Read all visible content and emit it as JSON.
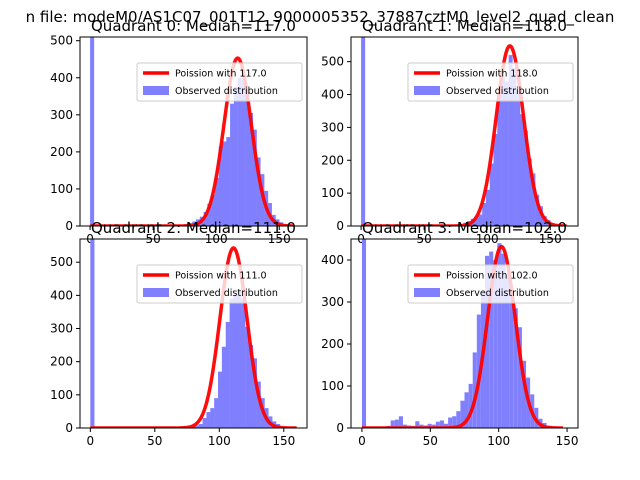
{
  "figure": {
    "suptitle": "n file: modeM0/AS1C07_001T12_9000005352_37887cztM0_level2_quad_clean"
  },
  "colors": {
    "observed": "#8080ff",
    "poisson": "#ff0000",
    "axes": "#000000"
  },
  "chart_data": [
    {
      "type": "bar",
      "title": "Quadrant 0: Median=117.0",
      "xlim": [
        -8,
        172
      ],
      "ylim": [
        0,
        510
      ],
      "xticks": [
        0,
        50,
        100,
        150
      ],
      "yticks": [
        0,
        100,
        200,
        300,
        400,
        500
      ],
      "bin_width": 3.2,
      "legend": {
        "poisson_label": "Poission with 117.0",
        "observed_label": "Observed distribution",
        "placement": "top-right"
      },
      "poisson": {
        "mean": 117,
        "peak": 453,
        "x_range": [
          0,
          162
        ]
      },
      "observed_x": [
        0,
        3,
        6,
        9,
        12,
        15,
        18,
        21,
        24,
        27,
        30,
        33,
        36,
        39,
        42,
        45,
        48,
        51,
        54,
        57,
        60,
        63,
        66,
        69,
        72,
        75,
        78,
        81,
        84,
        87,
        90,
        93,
        96,
        99,
        102,
        105,
        108,
        111,
        114,
        117,
        120,
        123,
        126,
        129,
        132,
        135,
        138,
        141,
        144,
        147,
        150,
        153,
        156,
        159,
        162
      ],
      "observed_y": [
        510,
        0,
        0,
        0,
        0,
        0,
        0,
        0,
        0,
        0,
        0,
        0,
        0,
        0,
        0,
        0,
        0,
        0,
        0,
        0,
        0,
        0,
        0,
        2,
        3,
        5,
        8,
        12,
        18,
        25,
        38,
        60,
        85,
        130,
        215,
        228,
        240,
        330,
        375,
        400,
        395,
        370,
        305,
        260,
        185,
        140,
        95,
        62,
        30,
        18,
        10,
        5,
        3,
        2,
        1
      ]
    },
    {
      "type": "bar",
      "title": "Quadrant 1: Median=118.0",
      "xlim": [
        -8,
        172
      ],
      "ylim": [
        0,
        575
      ],
      "xticks": [
        0,
        50,
        100,
        150
      ],
      "yticks": [
        0,
        100,
        200,
        300,
        400,
        500
      ],
      "bin_width": 3.2,
      "legend": {
        "poisson_label": "Poission with 118.0",
        "observed_label": "Observed distribution",
        "placement": "top-right"
      },
      "poisson": {
        "mean": 118,
        "peak": 548,
        "x_range": [
          0,
          163
        ]
      },
      "observed_x": [
        0,
        3,
        6,
        9,
        12,
        15,
        18,
        21,
        24,
        27,
        30,
        33,
        36,
        39,
        42,
        45,
        48,
        51,
        54,
        57,
        60,
        63,
        66,
        69,
        72,
        75,
        78,
        81,
        84,
        87,
        90,
        93,
        96,
        99,
        102,
        105,
        108,
        111,
        114,
        117,
        120,
        123,
        126,
        129,
        132,
        135,
        138,
        141,
        144,
        147,
        150,
        153,
        156,
        159,
        162
      ],
      "observed_y": [
        575,
        0,
        0,
        0,
        0,
        0,
        0,
        0,
        0,
        0,
        0,
        0,
        0,
        0,
        0,
        0,
        0,
        0,
        0,
        0,
        0,
        0,
        0,
        1,
        2,
        4,
        6,
        10,
        15,
        22,
        25,
        35,
        70,
        110,
        190,
        280,
        400,
        455,
        440,
        520,
        480,
        410,
        340,
        290,
        205,
        160,
        95,
        60,
        30,
        18,
        9,
        5,
        3,
        2,
        1
      ]
    },
    {
      "type": "bar",
      "title": "Quadrant 2: Median=111.0",
      "xlim": [
        -8,
        168
      ],
      "ylim": [
        0,
        570
      ],
      "xticks": [
        0,
        50,
        100,
        150
      ],
      "yticks": [
        0,
        100,
        200,
        300,
        400,
        500
      ],
      "bin_width": 3.2,
      "legend": {
        "poisson_label": "Poission with 111.0",
        "observed_label": "Observed distribution",
        "placement": "top-right"
      },
      "poisson": {
        "mean": 111,
        "peak": 543,
        "x_range": [
          0,
          160
        ]
      },
      "observed_x": [
        0,
        3,
        6,
        9,
        12,
        15,
        18,
        21,
        24,
        27,
        30,
        33,
        36,
        39,
        42,
        45,
        48,
        51,
        54,
        57,
        60,
        63,
        66,
        69,
        72,
        75,
        78,
        81,
        84,
        87,
        90,
        93,
        96,
        99,
        102,
        105,
        108,
        111,
        114,
        117,
        120,
        123,
        126,
        129,
        132,
        135,
        138,
        141,
        144,
        147,
        150,
        153,
        156,
        159
      ],
      "observed_y": [
        570,
        0,
        0,
        0,
        0,
        0,
        0,
        0,
        0,
        0,
        0,
        0,
        0,
        0,
        0,
        0,
        0,
        0,
        0,
        0,
        0,
        0,
        0,
        1,
        2,
        3,
        5,
        8,
        12,
        30,
        48,
        60,
        90,
        170,
        245,
        320,
        390,
        400,
        415,
        390,
        305,
        250,
        210,
        140,
        90,
        60,
        35,
        20,
        12,
        6,
        3,
        2,
        1,
        1
      ]
    },
    {
      "type": "bar",
      "title": "Quadrant 3: Median=102.0",
      "xlim": [
        -8,
        158
      ],
      "ylim": [
        0,
        450
      ],
      "xticks": [
        0,
        50,
        100,
        150
      ],
      "yticks": [
        0,
        100,
        200,
        300,
        400
      ],
      "bin_width": 3.0,
      "legend": {
        "poisson_label": "Poission with 102.0",
        "observed_label": "Observed distribution",
        "placement": "top-right"
      },
      "poisson": {
        "mean": 102,
        "peak": 432,
        "x_range": [
          0,
          147
        ]
      },
      "observed_x": [
        0,
        3,
        6,
        9,
        12,
        15,
        18,
        21,
        24,
        27,
        30,
        33,
        36,
        39,
        42,
        45,
        48,
        51,
        54,
        57,
        60,
        63,
        66,
        69,
        72,
        75,
        78,
        81,
        84,
        87,
        90,
        93,
        96,
        99,
        102,
        105,
        108,
        111,
        114,
        117,
        120,
        123,
        126,
        129,
        132,
        135,
        138,
        141,
        144
      ],
      "observed_y": [
        450,
        0,
        0,
        0,
        0,
        0,
        5,
        18,
        20,
        28,
        8,
        6,
        5,
        16,
        8,
        6,
        10,
        8,
        15,
        18,
        10,
        25,
        28,
        40,
        65,
        85,
        105,
        180,
        270,
        320,
        410,
        420,
        400,
        440,
        415,
        360,
        320,
        285,
        240,
        160,
        120,
        80,
        48,
        22,
        12,
        5,
        3,
        2,
        1
      ]
    }
  ]
}
